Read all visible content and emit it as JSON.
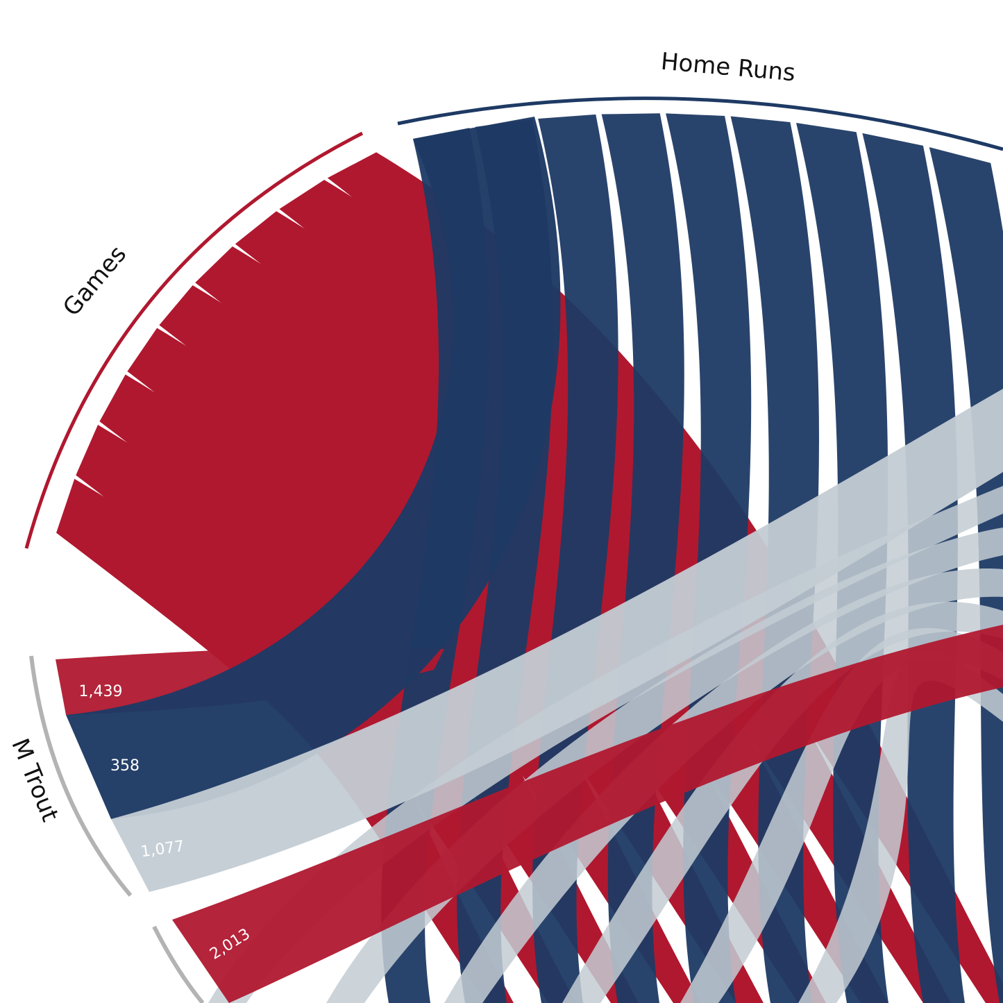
{
  "chart_data": {
    "type": "chord",
    "groups": [
      {
        "name": "Games",
        "color": "#b0182f"
      },
      {
        "name": "Home Runs",
        "color": "#1e3a64"
      },
      {
        "name": null,
        "color": "#c3ccd4"
      }
    ],
    "series": [
      {
        "name": "M Trout",
        "values": [
          1439,
          358,
          1077
        ],
        "value_labels": [
          "1,439",
          "358",
          "1,077"
        ]
      },
      {
        "name": null,
        "values": [
          2013,
          null,
          null
        ],
        "value_labels": [
          "2,013",
          null,
          null
        ]
      }
    ]
  }
}
